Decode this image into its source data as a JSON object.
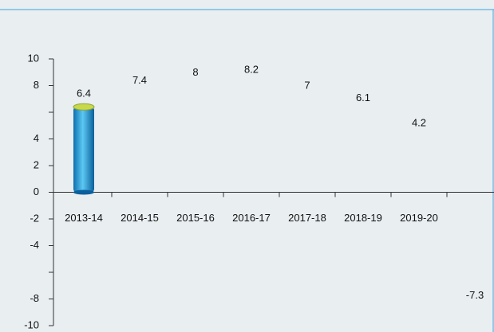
{
  "chart_data": {
    "type": "bar",
    "categories": [
      "2013-14",
      "2014-15",
      "2015-16",
      "2016-17",
      "2017-18",
      "2018-19",
      "2019-20",
      null
    ],
    "values": [
      6.4,
      7.4,
      8,
      8.2,
      7,
      6.1,
      4.2,
      -7.3
    ],
    "colors": [
      "#1e9fd8",
      "none",
      "none",
      "none",
      "none",
      "none",
      "none",
      "none"
    ],
    "ylim": [
      -10,
      10
    ],
    "yticks": [
      10,
      8,
      {
        "value": 6,
        "label": null
      },
      4,
      2,
      0,
      -2,
      -4,
      {
        "value": -6,
        "label": null
      },
      -8,
      -10
    ]
  }
}
